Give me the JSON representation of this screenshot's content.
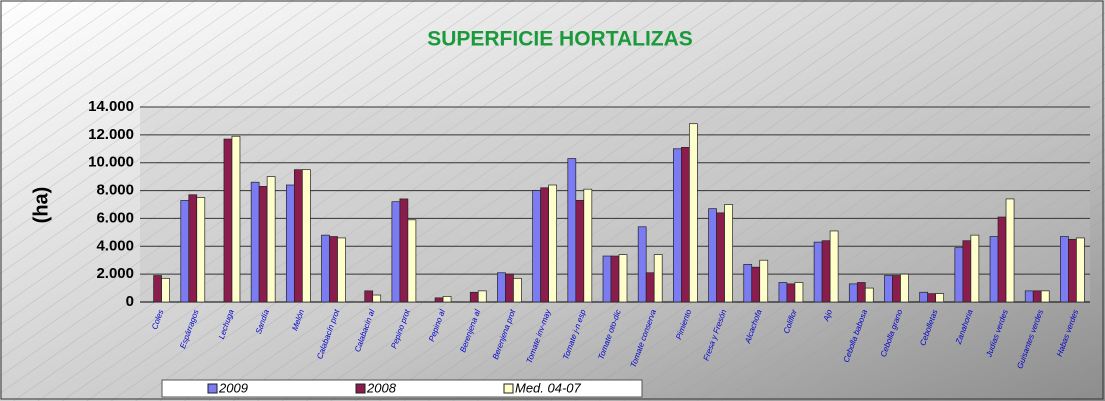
{
  "chart_data": {
    "type": "bar",
    "title": "SUPERFICIE HORTALIZAS",
    "y_label": "(ha)",
    "categories": [
      "Coles",
      "Espárragos",
      "Lechuga",
      "Sandía",
      "Melón",
      "Calabacín prot",
      "Calabacín al",
      "Pepino prot",
      "Pepino al",
      "Berenjena al",
      "Berenjena prot",
      "Tomate inv-may",
      "Tomate j-n esp",
      "Tomate oto-dic",
      "Tomate conserva",
      "Pimiento",
      "Fresa y Fresón",
      "Alcachofa",
      "Coliflor",
      "Ajo",
      "Cebolla babosa",
      "Cebolla grano",
      "Cebolletas",
      "Zanahoria",
      "Judías verdes",
      "Guisantes verdes",
      "Habas verdes"
    ],
    "series": [
      {
        "name": "2009",
        "color": "#7b7bf2",
        "values": [
          null,
          7300,
          null,
          8600,
          8400,
          4800,
          null,
          7200,
          null,
          null,
          2100,
          8000,
          10300,
          3300,
          5400,
          11000,
          6700,
          2700,
          1400,
          4300,
          1300,
          1900,
          700,
          3900,
          4700,
          800,
          4700
        ]
      },
      {
        "name": "2008",
        "color": "#8b1d4d",
        "values": [
          1900,
          7700,
          11700,
          8300,
          9500,
          4700,
          800,
          7400,
          300,
          700,
          2000,
          8200,
          7300,
          3300,
          2100,
          11100,
          6400,
          2500,
          1300,
          4400,
          1400,
          1900,
          600,
          4400,
          6100,
          800,
          4500
        ]
      },
      {
        "name": "Med. 04-07",
        "color": "#ffffcc",
        "values": [
          1700,
          7500,
          11900,
          9000,
          9500,
          4600,
          500,
          5900,
          400,
          800,
          1700,
          8400,
          8100,
          3400,
          3400,
          12800,
          7000,
          3000,
          1400,
          5100,
          1000,
          2000,
          600,
          4800,
          7400,
          800,
          4600
        ]
      }
    ],
    "ylim": [
      0,
      14000
    ],
    "yticks": [
      {
        "value": 0,
        "label": "0"
      },
      {
        "value": 2000,
        "label": "2.000"
      },
      {
        "value": 4000,
        "label": "4.000"
      },
      {
        "value": 6000,
        "label": "6.000"
      },
      {
        "value": 8000,
        "label": "8.000"
      },
      {
        "value": 10000,
        "label": "10.000"
      },
      {
        "value": 12000,
        "label": "12.000"
      },
      {
        "value": 14000,
        "label": "14.000"
      }
    ],
    "grid": true
  }
}
